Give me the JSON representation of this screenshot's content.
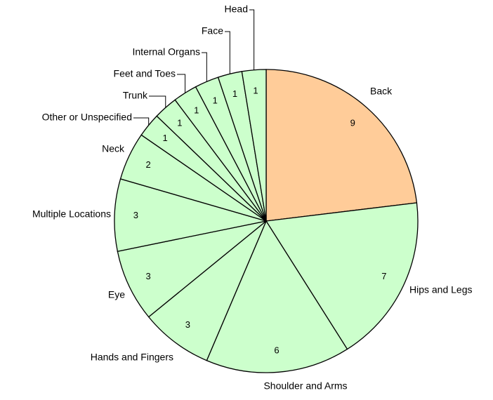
{
  "chart_data": {
    "type": "pie",
    "categories": [
      "Back",
      "Hips and Legs",
      "Shoulder and Arms",
      "Hands and Fingers",
      "Eye",
      "Multiple Locations",
      "Neck",
      "Other or Unspecified",
      "Trunk",
      "Feet and Toes",
      "Internal Organs",
      "Face",
      "Head"
    ],
    "values": [
      9,
      7,
      6,
      3,
      3,
      3,
      2,
      1,
      1,
      1,
      1,
      1,
      1
    ],
    "colors": [
      "#ffcc99",
      "#ccffcc",
      "#ccffcc",
      "#ccffcc",
      "#ccffcc",
      "#ccffcc",
      "#ccffcc",
      "#ccffcc",
      "#ccffcc",
      "#ccffcc",
      "#ccffcc",
      "#ccffcc",
      "#ccffcc"
    ]
  }
}
